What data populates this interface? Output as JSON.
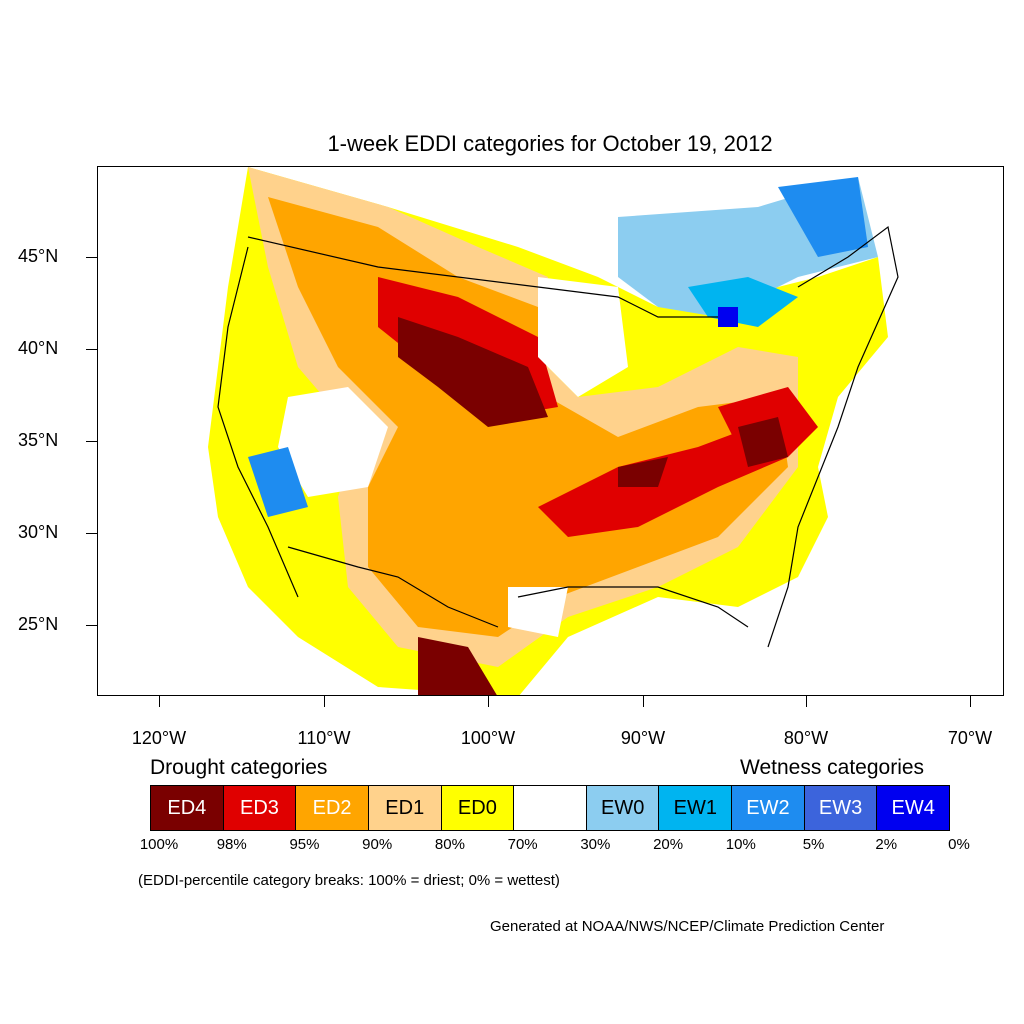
{
  "title": "1-week EDDI categories for October 19, 2012",
  "y_axis_labels": [
    "45°N",
    "40°N",
    "35°N",
    "30°N",
    "25°N"
  ],
  "x_axis_labels": [
    "120°W",
    "110°W",
    "100°W",
    "90°W",
    "80°W",
    "70°W"
  ],
  "legend": {
    "drought_heading": "Drought categories",
    "wetness_heading": "Wetness categories",
    "categories": [
      {
        "label": "ED4",
        "color": "#7a0000",
        "text_color": "#ffffff"
      },
      {
        "label": "ED3",
        "color": "#e00000",
        "text_color": "#ffffff"
      },
      {
        "label": "ED2",
        "color": "#ffa500",
        "text_color": "#ffffff"
      },
      {
        "label": "ED1",
        "color": "#ffd28c",
        "text_color": "#000000"
      },
      {
        "label": "ED0",
        "color": "#ffff00",
        "text_color": "#000000"
      },
      {
        "label": "",
        "color": "#ffffff",
        "text_color": "#000000"
      },
      {
        "label": "EW0",
        "color": "#8ccdf0",
        "text_color": "#000000"
      },
      {
        "label": "EW1",
        "color": "#00b4f0",
        "text_color": "#000000"
      },
      {
        "label": "EW2",
        "color": "#1e8cf0",
        "text_color": "#ffffff"
      },
      {
        "label": "EW3",
        "color": "#3c64dc",
        "text_color": "#ffffff"
      },
      {
        "label": "EW4",
        "color": "#0000f0",
        "text_color": "#ffffff"
      }
    ],
    "percent_breaks": [
      "100%",
      "98%",
      "95%",
      "90%",
      "80%",
      "70%",
      "30%",
      "20%",
      "10%",
      "5%",
      "2%",
      "0%"
    ]
  },
  "note": "(EDDI-percentile category breaks: 100% = driest; 0% = wettest)",
  "credit": "Generated at NOAA/NWS/NCEP/Climate Prediction Center"
}
